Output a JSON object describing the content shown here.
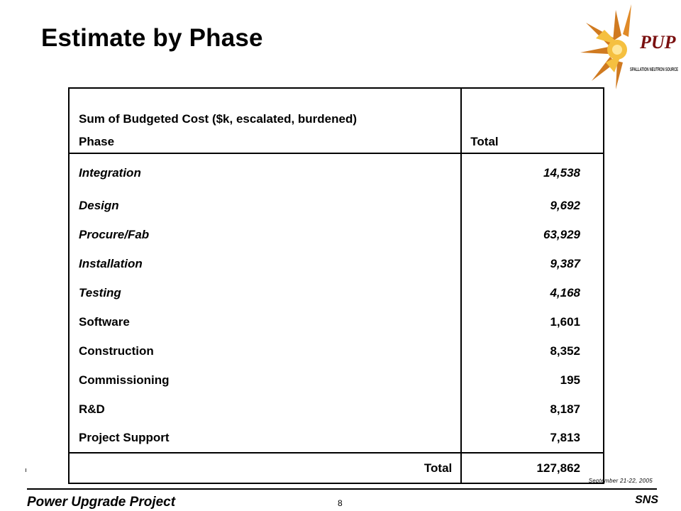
{
  "slide": {
    "title": "Estimate by Phase",
    "logo": {
      "mark": "PUP",
      "subtitle": "SPALLATION NEUTRON SOURCE",
      "colors": {
        "mark": "#7a1010",
        "rays": "#d07a20",
        "burst": "#f5c040"
      }
    }
  },
  "table": {
    "caption": "Sum of Budgeted Cost ($k, escalated, burdened)",
    "column_headers": [
      "Phase",
      "Total"
    ],
    "rows": [
      {
        "phase": "Integration",
        "total": "14,538",
        "italic": true
      },
      {
        "phase": "Design",
        "total": "9,692",
        "italic": true
      },
      {
        "phase": "Procure/Fab",
        "total": "63,929",
        "italic": true
      },
      {
        "phase": "Installation",
        "total": "9,387",
        "italic": true
      },
      {
        "phase": "Testing",
        "total": "4,168",
        "italic": true
      },
      {
        "phase": "Software",
        "total": "1,601",
        "italic": false
      },
      {
        "phase": "Construction",
        "total": "8,352",
        "italic": false
      },
      {
        "phase": "Commissioning",
        "total": "195",
        "italic": false
      },
      {
        "phase": "R&D",
        "total": "8,187",
        "italic": false
      },
      {
        "phase": "Project Support",
        "total": "7,813",
        "italic": false
      }
    ],
    "total_row": {
      "label": "Total",
      "value": "127,862"
    }
  },
  "footer": {
    "date": "September 21-22, 2005",
    "left": "Power Upgrade Project",
    "page": "8",
    "right": "SNS"
  }
}
